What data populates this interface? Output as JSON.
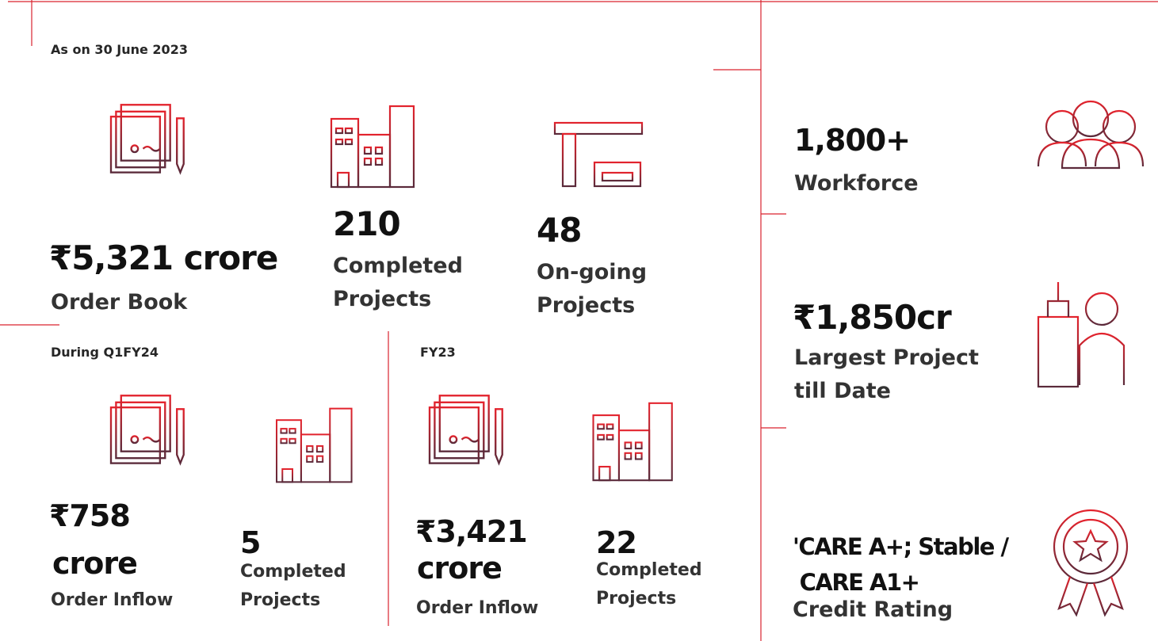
{
  "header": {
    "as_on": "As on 30 June 2023"
  },
  "overview": [
    {
      "value": "₹5,321 crore",
      "label": [
        "Order Book"
      ]
    },
    {
      "value": "210",
      "label": [
        "Completed",
        "Projects"
      ]
    },
    {
      "value": "48",
      "label": [
        "On-going",
        "Projects"
      ]
    }
  ],
  "quarter": {
    "heading": "During Q1FY24",
    "items": [
      {
        "value": [
          "₹758",
          "crore"
        ],
        "label": [
          "Order Inflow"
        ]
      },
      {
        "value": [
          "5"
        ],
        "label": [
          "Completed",
          "Projects"
        ]
      }
    ]
  },
  "year": {
    "heading": "FY23",
    "items": [
      {
        "value": [
          "₹3,421",
          "crore"
        ],
        "label": [
          "Order Inflow"
        ]
      },
      {
        "value": [
          "22"
        ],
        "label": [
          "Completed",
          "Projects"
        ]
      }
    ]
  },
  "highlights": [
    {
      "value": [
        "1,800+"
      ],
      "label": [
        "Workforce"
      ]
    },
    {
      "value": [
        "₹1,850cr"
      ],
      "label": [
        "Largest Project",
        "till Date"
      ]
    },
    {
      "value": [
        "'CARE A+; Stable /",
        " CARE A1+"
      ],
      "label": [
        "Credit Rating"
      ]
    }
  ]
}
